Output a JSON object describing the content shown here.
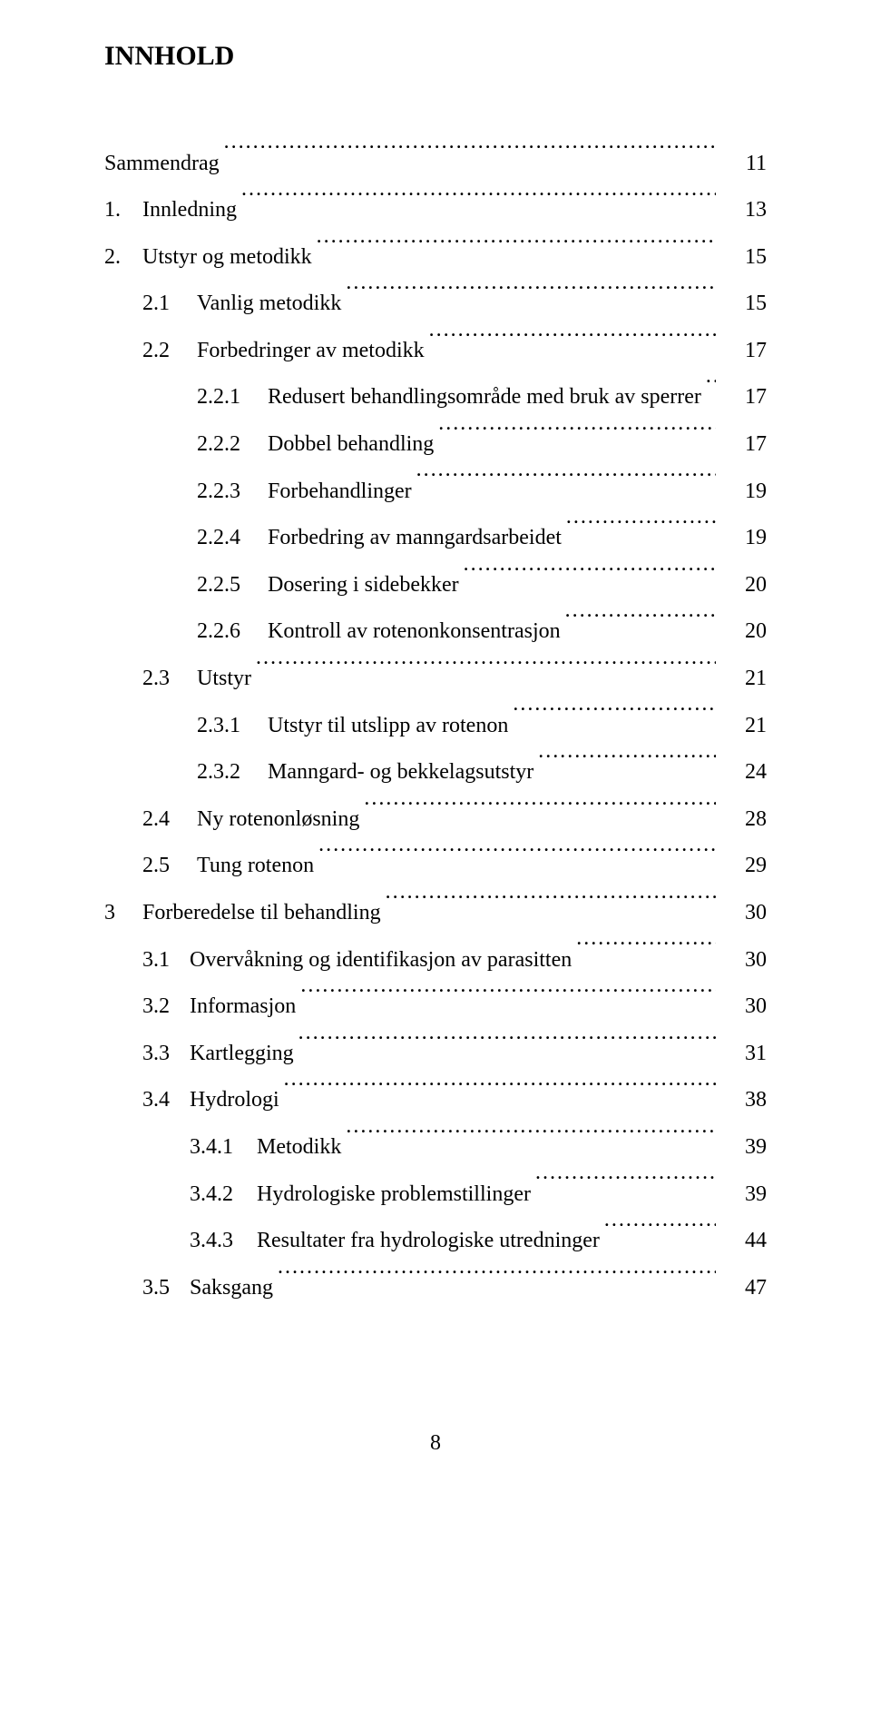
{
  "title": "INNHOLD",
  "footer_page_number": "8",
  "entries": [
    {
      "level": "lvl0",
      "num": "",
      "label": "Sammendrag",
      "page": "11"
    },
    {
      "level": "lvl1",
      "num": "1.",
      "label": "Innledning",
      "page": "13"
    },
    {
      "level": "lvl1",
      "num": "2.",
      "label": "Utstyr og metodikk",
      "page": "15"
    },
    {
      "level": "lvl2",
      "num": "2.1",
      "label": "Vanlig metodikk",
      "page": "15"
    },
    {
      "level": "lvl2",
      "num": "2.2",
      "label": "Forbedringer av metodikk",
      "page": "17"
    },
    {
      "level": "lvl3",
      "num": "2.2.1",
      "label": "Redusert behandlingsområde med bruk av sperrer",
      "page": "17"
    },
    {
      "level": "lvl3",
      "num": "2.2.2",
      "label": "Dobbel behandling",
      "page": "17"
    },
    {
      "level": "lvl3",
      "num": "2.2.3",
      "label": "Forbehandlinger",
      "page": "19"
    },
    {
      "level": "lvl3",
      "num": "2.2.4",
      "label": "Forbedring av manngardsarbeidet",
      "page": "19"
    },
    {
      "level": "lvl3",
      "num": "2.2.5",
      "label": "Dosering i sidebekker",
      "page": "20"
    },
    {
      "level": "lvl3",
      "num": "2.2.6",
      "label": "Kontroll av rotenonkonsentrasjon",
      "page": "20"
    },
    {
      "level": "lvl2",
      "num": "2.3",
      "label": "Utstyr",
      "page": "21"
    },
    {
      "level": "lvl3",
      "num": "2.3.1",
      "label": "Utstyr til utslipp av rotenon",
      "page": "21"
    },
    {
      "level": "lvl3",
      "num": "2.3.2",
      "label": "Manngard- og bekkelagsutstyr",
      "page": "24"
    },
    {
      "level": "lvl2",
      "num": "2.4",
      "label": "Ny rotenonløsning",
      "page": "28"
    },
    {
      "level": "lvl2",
      "num": "2.5",
      "label": "Tung rotenon",
      "page": "29"
    },
    {
      "level": "lvl1",
      "num": "3",
      "label": "Forberedelse til behandling",
      "page": "30"
    },
    {
      "level": "lvl2b",
      "num": "3.1",
      "label": "Overvåkning og identifikasjon av parasitten",
      "page": "30"
    },
    {
      "level": "lvl2b",
      "num": "3.2",
      "label": "Informasjon",
      "page": "30"
    },
    {
      "level": "lvl2b",
      "num": "3.3",
      "label": "Kartlegging",
      "page": "31"
    },
    {
      "level": "lvl2b",
      "num": "3.4",
      "label": "Hydrologi",
      "page": "38"
    },
    {
      "level": "lvl3b",
      "num": "3.4.1",
      "label": "Metodikk",
      "page": "39"
    },
    {
      "level": "lvl3b",
      "num": "3.4.2",
      "label": "Hydrologiske problemstillinger",
      "page": "39"
    },
    {
      "level": "lvl3b",
      "num": "3.4.3",
      "label": "Resultater fra hydrologiske utredninger",
      "page": "44"
    },
    {
      "level": "lvl2b",
      "num": "3.5",
      "label": "Saksgang",
      "page": "47"
    }
  ]
}
